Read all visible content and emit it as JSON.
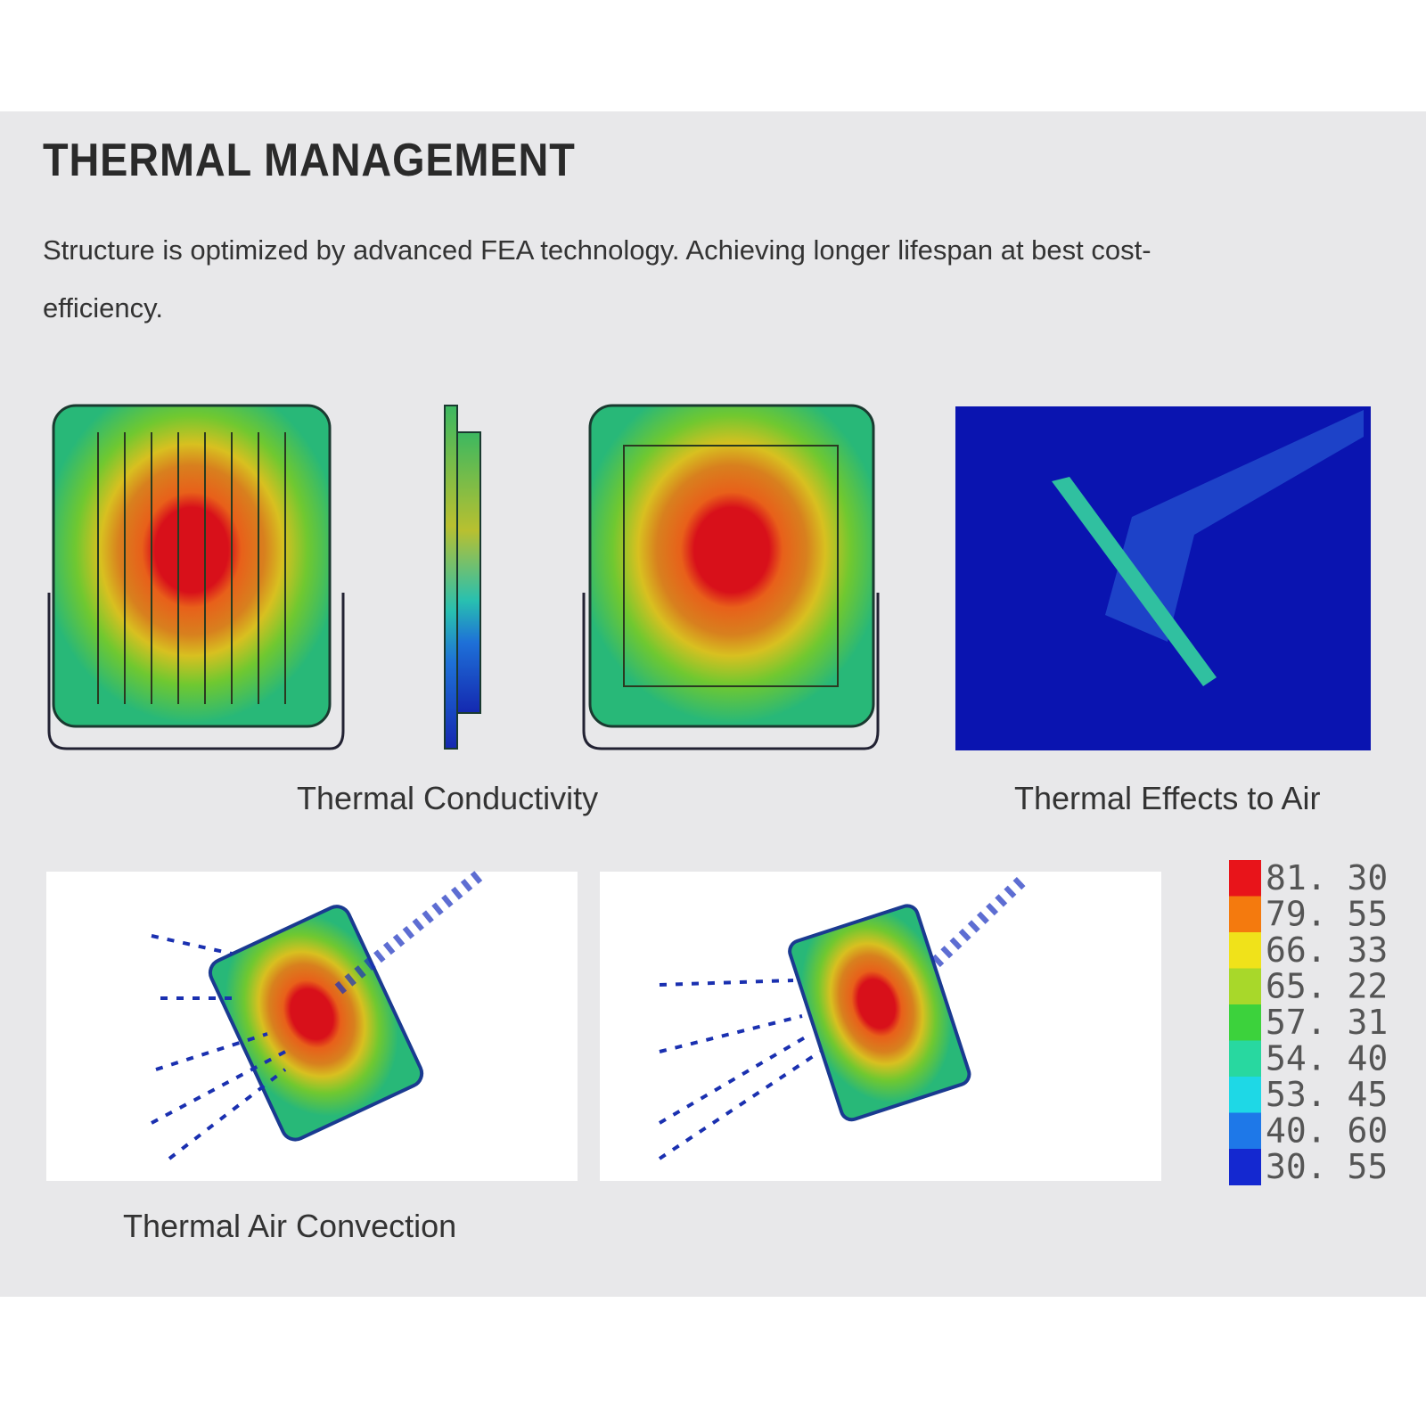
{
  "header": {
    "title": "THERMAL MANAGEMENT",
    "subtitle": "Structure is optimized by advanced FEA technology. Achieving longer lifespan at best cost-efficiency."
  },
  "captions": {
    "conductivity": "Thermal Conductivity",
    "air_effects": "Thermal Effects to Air",
    "convection": "Thermal Air Convection"
  },
  "legend": {
    "items": [
      {
        "label": "81. 30",
        "color": "#e8141a"
      },
      {
        "label": "79. 55",
        "color": "#f47a0e"
      },
      {
        "label": "66. 33",
        "color": "#f0e21a"
      },
      {
        "label": "65. 22",
        "color": "#a8d82a"
      },
      {
        "label": "57. 31",
        "color": "#3cd23c"
      },
      {
        "label": "54. 40",
        "color": "#28d8a0"
      },
      {
        "label": "53. 45",
        "color": "#1ed8e6"
      },
      {
        "label": "40. 60",
        "color": "#1e78e8"
      },
      {
        "label": "30. 55",
        "color": "#1428d0"
      }
    ]
  }
}
